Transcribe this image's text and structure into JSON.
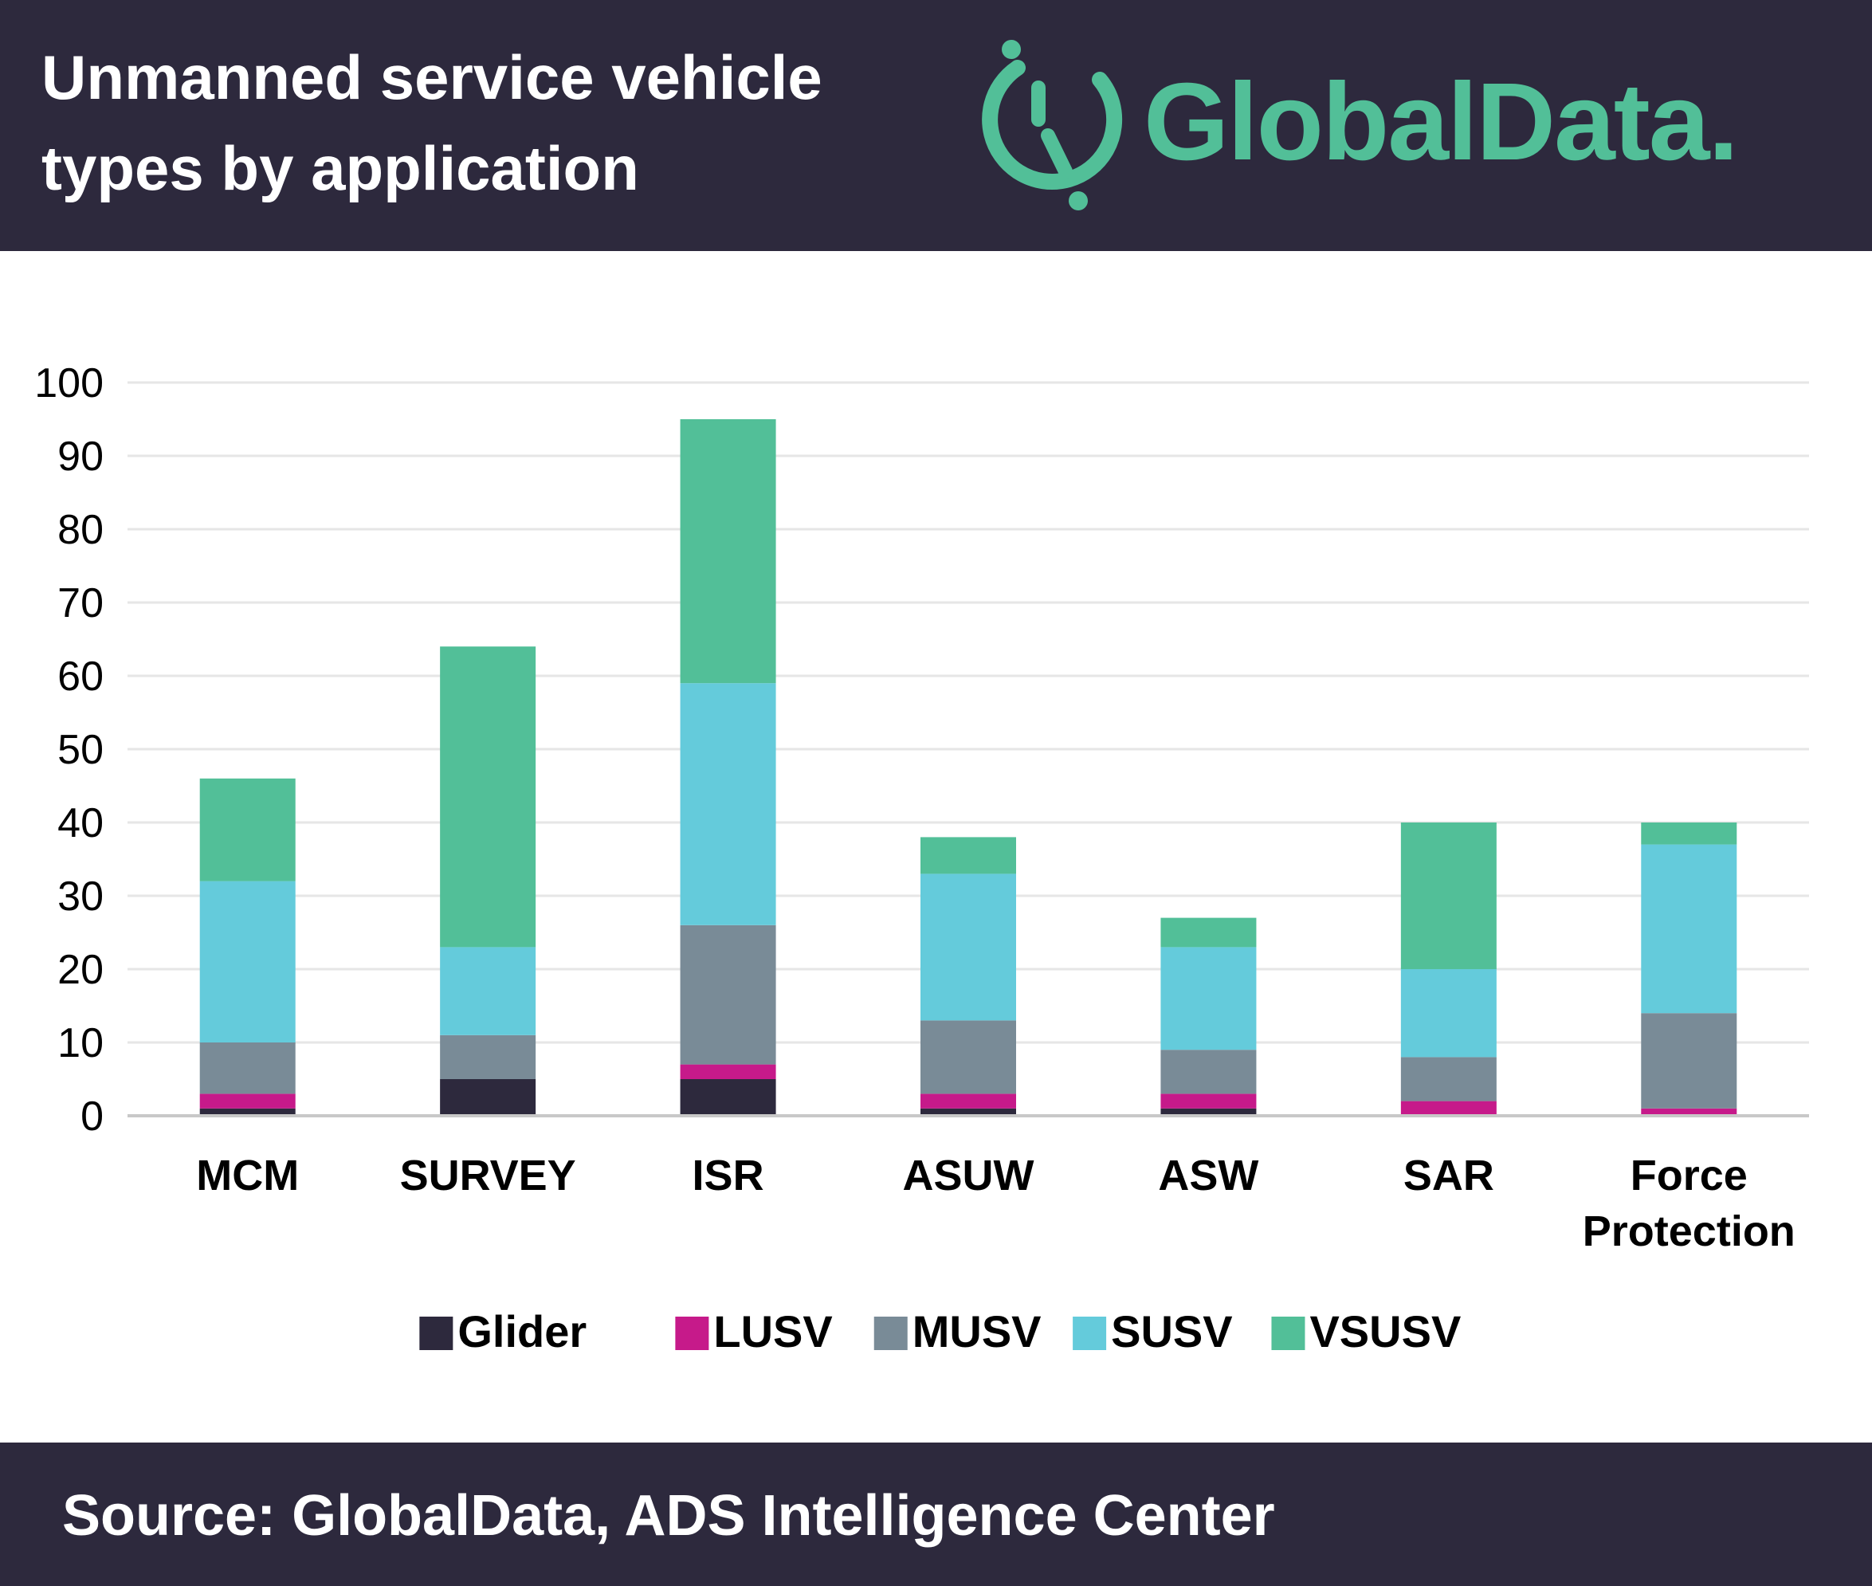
{
  "header": {
    "title": "Unmanned service vehicle types by application",
    "logo_text": "GlobalData."
  },
  "footer": {
    "source": "Source:  GlobalData, ADS Intelligence Center"
  },
  "colors": {
    "header_bg": "#2d293d",
    "brand_green": "#52bf98"
  },
  "chart_data": {
    "type": "bar",
    "stacked": true,
    "categories": [
      "MCM",
      "SURVEY",
      "ISR",
      "ASUW",
      "ASW",
      "SAR",
      "Force Protection"
    ],
    "series": [
      {
        "name": "Glider",
        "color": "#2d293d",
        "values": [
          1,
          5,
          5,
          1,
          1,
          0,
          0
        ]
      },
      {
        "name": "LUSV",
        "color": "#c61a8a",
        "values": [
          2,
          0,
          2,
          2,
          2,
          2,
          1
        ]
      },
      {
        "name": "MUSV",
        "color": "#798b97",
        "values": [
          7,
          6,
          19,
          10,
          6,
          6,
          13
        ]
      },
      {
        "name": "SUSV",
        "color": "#64cbdb",
        "values": [
          22,
          12,
          33,
          20,
          14,
          12,
          23
        ]
      },
      {
        "name": "VSUSV",
        "color": "#52bf98",
        "values": [
          14,
          41,
          36,
          5,
          4,
          20,
          3
        ]
      }
    ],
    "ylim": [
      0,
      100
    ],
    "yticks": [
      0,
      10,
      20,
      30,
      40,
      50,
      60,
      70,
      80,
      90,
      100
    ],
    "grid": true,
    "legend_position": "bottom",
    "xlabel": "",
    "ylabel": ""
  }
}
